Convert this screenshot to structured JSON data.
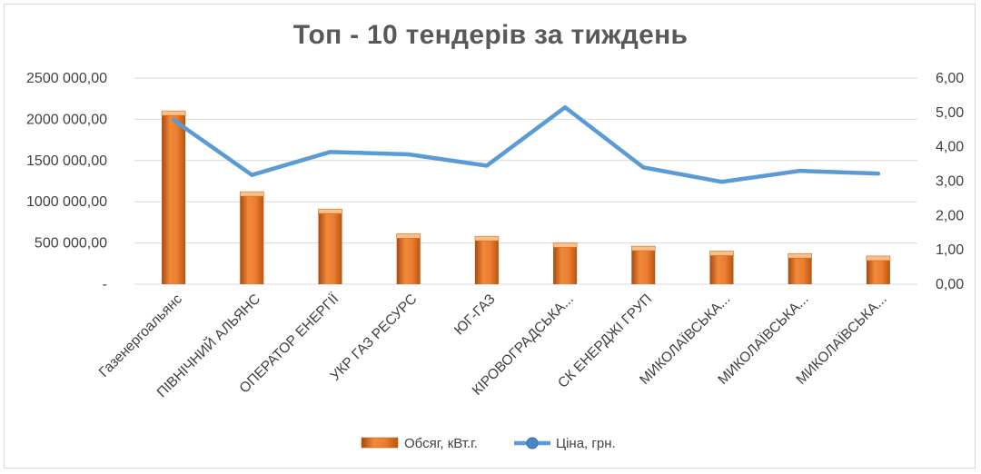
{
  "chart_data": {
    "type": "bar",
    "title": "Топ - 10 тендерів за тиждень",
    "categories": [
      "Газенергоальянс",
      "ПІВНІЧНИЙ АЛЬЯНС",
      "ОПЕРАТОР ЕНЕРГІЇ",
      "УКР ГАЗ РЕСУРС",
      "ЮГ-ГАЗ",
      "КІРОВОГРАДСЬКА...",
      "СК ЕНЕРДЖІ ГРУП",
      "МИКОЛАЇВСЬКА...",
      "МИКОЛАЇВСЬКА...",
      "МИКОЛАЇВСЬКА..."
    ],
    "series": [
      {
        "name": "Обсяг, кВт.г.",
        "type": "bar",
        "axis": "left",
        "color": "#ED7D31",
        "values": [
          2080000,
          1100000,
          890000,
          590000,
          560000,
          480000,
          440000,
          380000,
          350000,
          320000
        ]
      },
      {
        "name": "Ціна, грн.",
        "type": "line",
        "axis": "right",
        "color": "#5B9BD5",
        "values": [
          4.78,
          3.18,
          3.85,
          3.78,
          3.45,
          5.15,
          3.4,
          2.98,
          3.3,
          3.22
        ]
      }
    ],
    "y_left": {
      "ylim": [
        0,
        2500000
      ],
      "ticks": [
        0,
        500000,
        1000000,
        1500000,
        2000000,
        2500000
      ],
      "tick_labels": [
        "-",
        "500 000,00",
        "1000 000,00",
        "1500 000,00",
        "2000 000,00",
        "2500 000,00"
      ]
    },
    "y_right": {
      "ylim": [
        0,
        6
      ],
      "ticks": [
        0,
        1,
        2,
        3,
        4,
        5,
        6
      ],
      "tick_labels": [
        "0,00",
        "1,00",
        "2,00",
        "3,00",
        "4,00",
        "5,00",
        "6,00"
      ]
    },
    "grid": true,
    "legend_position": "bottom"
  }
}
